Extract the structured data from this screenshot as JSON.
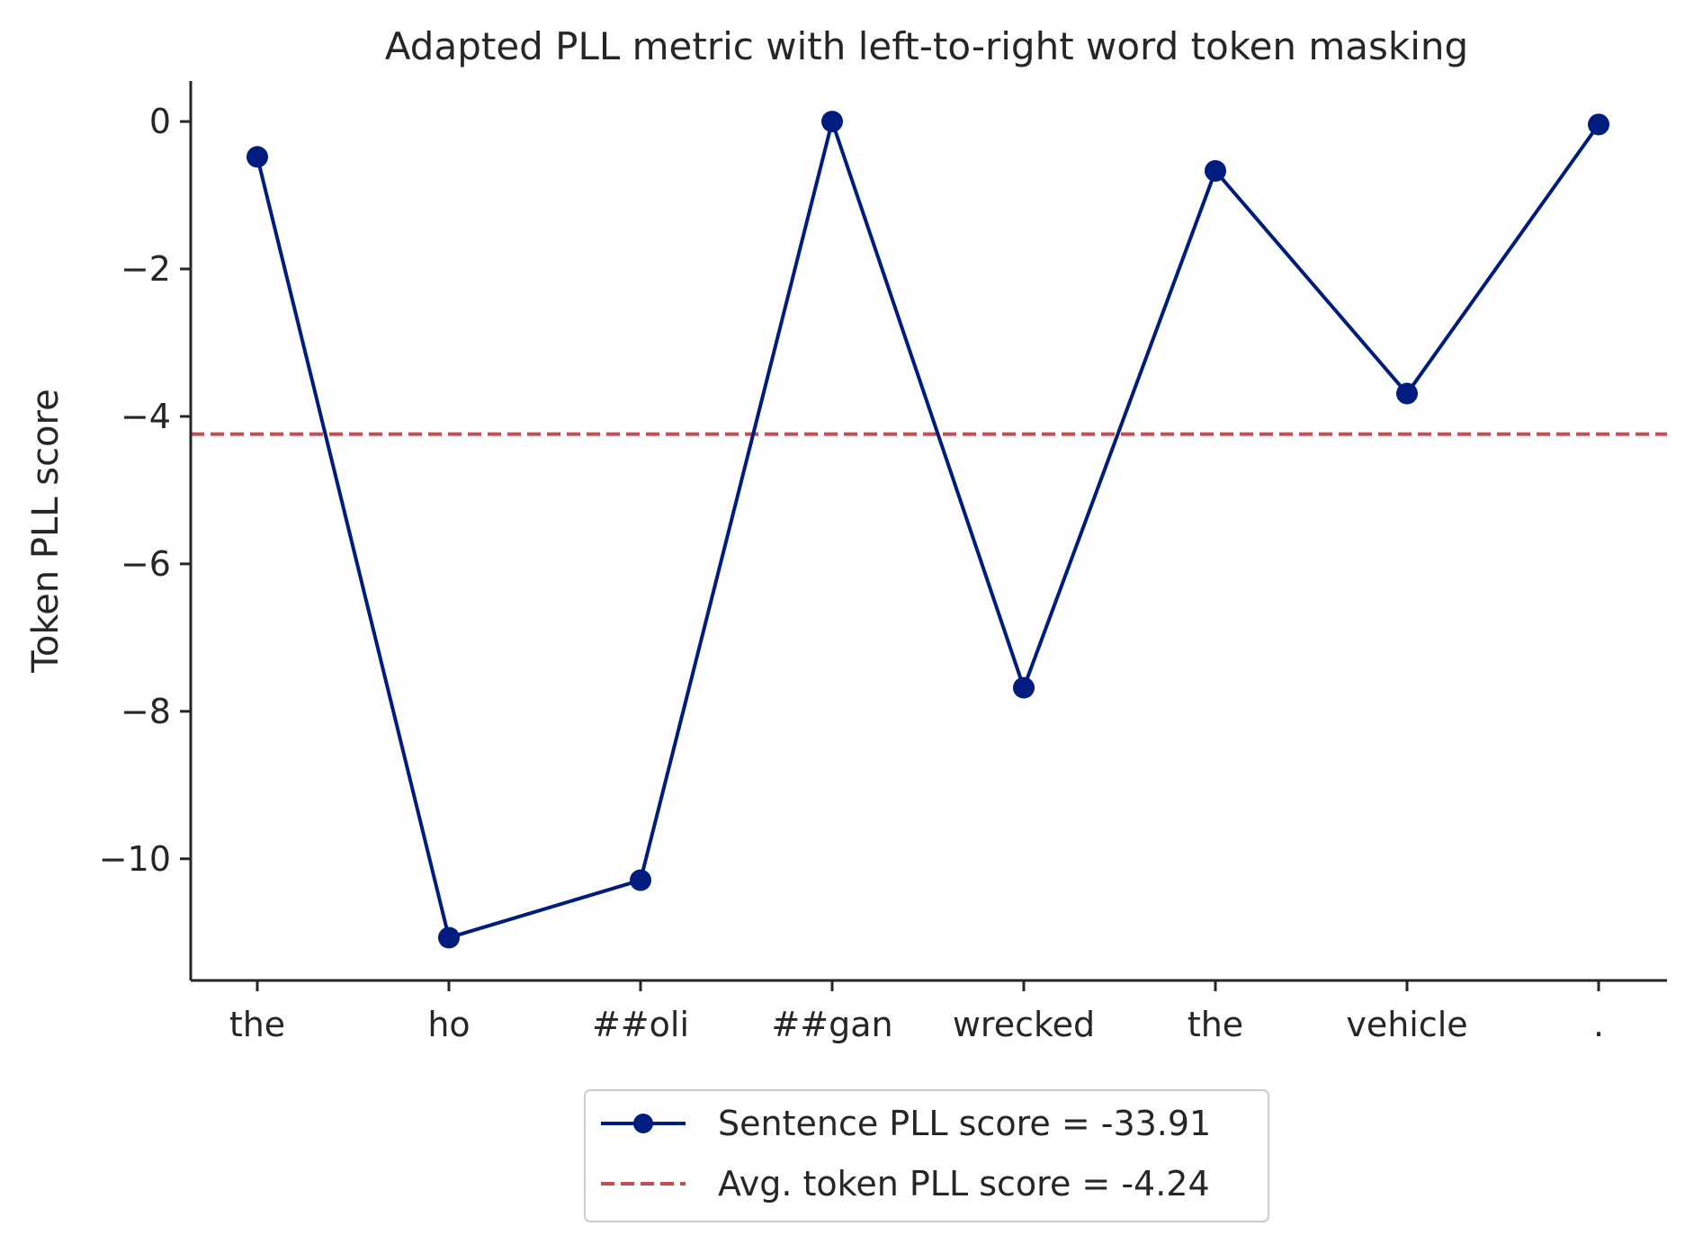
{
  "chart_data": {
    "type": "line",
    "title": "Adapted PLL metric with left-to-right word token masking",
    "xlabel": "",
    "ylabel": "Token PLL score",
    "categories": [
      "the",
      "ho",
      "##oli",
      "##gan",
      "wrecked",
      "the",
      "vehicle",
      "."
    ],
    "series": [
      {
        "name": "Sentence PLL score = -33.91",
        "values": [
          -0.48,
          -11.07,
          -10.29,
          0.0,
          -7.68,
          -0.67,
          -3.69,
          -0.04
        ],
        "color": "#001c7f",
        "style": "solid-with-markers"
      },
      {
        "name": "Avg. token PLL score = -4.24",
        "value": -4.24,
        "color": "#c44e52",
        "style": "dashed-horizontal"
      }
    ],
    "yticks": [
      0,
      -2,
      -4,
      -6,
      -8,
      -10
    ],
    "ytick_labels": [
      "0",
      "−2",
      "−4",
      "−6",
      "−8",
      "−10"
    ],
    "ylim": [
      -11.65,
      0.55
    ],
    "grid": false,
    "legend_position": "bottom-center"
  }
}
